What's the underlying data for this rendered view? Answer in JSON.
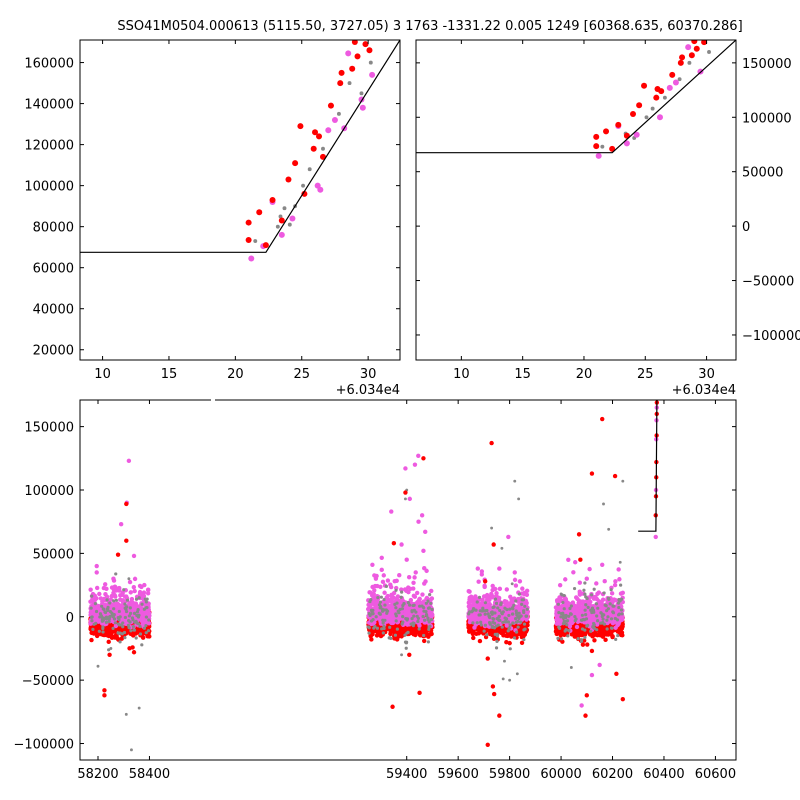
{
  "title": "SSO41M0504.000613 (5115.50, 3727.05) 3 1763 -1331.22 0.005 1249 [60368.635, 60370.286]",
  "colors": {
    "red": "#ff0000",
    "magenta": "#ee5ae0",
    "gray": "#888888",
    "line": "#000000"
  },
  "chart_data": [
    {
      "type": "scatter",
      "panel": "top-left",
      "x_offset_label": "+6.034e4",
      "xlim": [
        8.3,
        32.4
      ],
      "ylim": [
        15000,
        171000
      ],
      "xticks": [
        10,
        15,
        20,
        25,
        30
      ],
      "xtick_labels": [
        "10",
        "15",
        "20",
        "25",
        "30"
      ],
      "yticks": [
        20000,
        40000,
        60000,
        80000,
        100000,
        120000,
        140000,
        160000
      ],
      "ytick_labels": [
        "20000",
        "40000",
        "60000",
        "80000",
        "100000",
        "120000",
        "140000",
        "160000"
      ],
      "yaxis_side": "left",
      "model_line": [
        [
          8.3,
          67500
        ],
        [
          22.3,
          67500
        ],
        [
          32.4,
          171000
        ]
      ],
      "series": [
        {
          "color_key": "red",
          "points": [
            [
              21.0,
              73500
            ],
            [
              21.0,
              82000
            ],
            [
              21.8,
              87000
            ],
            [
              22.3,
              71000
            ],
            [
              22.8,
              93000
            ],
            [
              23.5,
              83000
            ],
            [
              24.0,
              103000
            ],
            [
              24.5,
              111000
            ],
            [
              24.9,
              129000
            ],
            [
              25.2,
              96000
            ],
            [
              25.9,
              118000
            ],
            [
              26.0,
              126000
            ],
            [
              26.3,
              124000
            ],
            [
              26.6,
              114000
            ],
            [
              27.2,
              139000
            ],
            [
              27.9,
              150000
            ],
            [
              28.0,
              155000
            ],
            [
              28.8,
              157000
            ],
            [
              29.2,
              163000
            ],
            [
              29.0,
              170000
            ],
            [
              29.8,
              169000
            ],
            [
              30.1,
              166000
            ]
          ]
        },
        {
          "color_key": "magenta",
          "points": [
            [
              21.2,
              64500
            ],
            [
              22.1,
              70500
            ],
            [
              22.8,
              92000
            ],
            [
              23.5,
              76000
            ],
            [
              24.3,
              84000
            ],
            [
              26.2,
              100000
            ],
            [
              26.4,
              98000
            ],
            [
              27.0,
              127000
            ],
            [
              27.5,
              132000
            ],
            [
              28.2,
              128000
            ],
            [
              28.5,
              164500
            ],
            [
              29.5,
              142000
            ],
            [
              29.6,
              138000
            ],
            [
              30.3,
              154000
            ]
          ]
        },
        {
          "color_key": "gray",
          "points": [
            [
              21.5,
              73000
            ],
            [
              23.2,
              80000
            ],
            [
              23.4,
              85000
            ],
            [
              23.7,
              89000
            ],
            [
              24.1,
              81000
            ],
            [
              24.5,
              90000
            ],
            [
              25.1,
              100000
            ],
            [
              25.6,
              108000
            ],
            [
              26.6,
              118000
            ],
            [
              27.8,
              135000
            ],
            [
              28.6,
              150000
            ],
            [
              29.5,
              145000
            ],
            [
              30.2,
              160000
            ]
          ]
        }
      ]
    },
    {
      "type": "scatter",
      "panel": "top-right",
      "x_offset_label": "+6.034e4",
      "xlim": [
        6.3,
        32.4
      ],
      "ylim": [
        -123000,
        171000
      ],
      "xticks": [
        10,
        15,
        20,
        25,
        30
      ],
      "xtick_labels": [
        "10",
        "15",
        "20",
        "25",
        "30"
      ],
      "yticks": [
        -100000,
        -50000,
        0,
        50000,
        100000,
        150000
      ],
      "ytick_labels": [
        "−100000",
        "−50000",
        "0",
        "50000",
        "100000",
        "150000"
      ],
      "yaxis_side": "right",
      "model_line": [
        [
          6.3,
          67500
        ],
        [
          22.3,
          67500
        ],
        [
          32.4,
          171000
        ]
      ],
      "series": [
        {
          "color_key": "red",
          "points": [
            [
              21.0,
              73500
            ],
            [
              21.0,
              82000
            ],
            [
              21.8,
              87000
            ],
            [
              22.3,
              71000
            ],
            [
              22.8,
              93000
            ],
            [
              23.5,
              83000
            ],
            [
              24.0,
              103000
            ],
            [
              24.5,
              111000
            ],
            [
              24.9,
              129000
            ],
            [
              25.9,
              118000
            ],
            [
              26.0,
              126000
            ],
            [
              26.3,
              124000
            ],
            [
              27.2,
              139000
            ],
            [
              27.9,
              150000
            ],
            [
              28.0,
              155000
            ],
            [
              28.8,
              157000
            ],
            [
              29.2,
              163000
            ],
            [
              29.0,
              170000
            ],
            [
              29.8,
              169000
            ]
          ]
        },
        {
          "color_key": "magenta",
          "points": [
            [
              21.2,
              64500
            ],
            [
              22.8,
              92000
            ],
            [
              23.5,
              76000
            ],
            [
              24.3,
              84000
            ],
            [
              26.2,
              100000
            ],
            [
              27.0,
              127000
            ],
            [
              27.5,
              132000
            ],
            [
              28.5,
              164500
            ],
            [
              29.5,
              142000
            ]
          ]
        },
        {
          "color_key": "gray",
          "points": [
            [
              21.5,
              73000
            ],
            [
              23.4,
              85000
            ],
            [
              24.1,
              81000
            ],
            [
              25.1,
              100000
            ],
            [
              25.6,
              108000
            ],
            [
              26.6,
              118000
            ],
            [
              27.8,
              135000
            ],
            [
              28.6,
              150000
            ],
            [
              30.2,
              160000
            ]
          ]
        }
      ]
    },
    {
      "type": "scatter",
      "panel": "bottom",
      "xlim": [
        58130,
        60680
      ],
      "ylim": [
        -113000,
        171000
      ],
      "xticks": [
        58200,
        58400,
        59400,
        59600,
        59800,
        60000,
        60200,
        60400,
        60600
      ],
      "xtick_labels": [
        "58200",
        "58400",
        "59400",
        "59600",
        "59800",
        "60000",
        "60200",
        "60400",
        "60600"
      ],
      "yticks": [
        -100000,
        -50000,
        0,
        50000,
        100000,
        150000
      ],
      "ytick_labels": [
        "−100000",
        "−50000",
        "0",
        "50000",
        "100000",
        "150000"
      ],
      "yaxis_side": "left",
      "broken_x_axis": {
        "gap_start": 58420,
        "gap_end": 59250
      },
      "season_clusters": [
        {
          "x_range": [
            58170,
            58400
          ],
          "spread": 12000
        },
        {
          "x_range": [
            59250,
            59500
          ],
          "spread": 14000
        },
        {
          "x_range": [
            59640,
            59870
          ],
          "spread": 12000
        },
        {
          "x_range": [
            59980,
            60240
          ],
          "spread": 12000
        }
      ],
      "model_line": [
        [
          60300,
          67500
        ],
        [
          60368.6,
          67500
        ],
        [
          60372.4,
          171000
        ]
      ],
      "series": [
        {
          "color_key": "magenta",
          "points": [
            [
              58195,
              40000
            ],
            [
              58195,
              35000
            ],
            [
              58320,
              123000
            ],
            [
              58312,
              90000
            ],
            [
              58290,
              73000
            ],
            [
              58340,
              48000
            ],
            [
              58260,
              30000
            ],
            [
              58380,
              25000
            ],
            [
              58205,
              18000
            ],
            [
              59340,
              83000
            ],
            [
              59395,
              117000
            ],
            [
              59445,
              127000
            ],
            [
              59432,
              120000
            ],
            [
              59412,
              93000
            ],
            [
              59460,
              80000
            ],
            [
              59446,
              75000
            ],
            [
              59380,
              57000
            ],
            [
              59472,
              67000
            ],
            [
              59303,
              37000
            ],
            [
              59465,
              52000
            ],
            [
              59400,
              45000
            ],
            [
              59435,
              35000
            ],
            [
              59760,
              38000
            ],
            [
              59795,
              63000
            ],
            [
              59820,
              35000
            ],
            [
              59715,
              15000
            ],
            [
              59840,
              28000
            ],
            [
              60055,
              43000
            ],
            [
              60160,
              41000
            ],
            [
              60210,
              25000
            ],
            [
              60100,
              30000
            ],
            [
              60135,
              15000
            ],
            [
              60080,
              -70000
            ],
            [
              60120,
              -46000
            ],
            [
              60150,
              -38000
            ],
            [
              60368,
              63000
            ],
            [
              60369,
              100000
            ],
            [
              60370,
              140000
            ],
            [
              60371,
              155000
            ],
            [
              60372,
              165000
            ]
          ]
        },
        {
          "color_key": "red",
          "points": [
            [
              58310,
              89000
            ],
            [
              58310,
              60000
            ],
            [
              58278,
              49000
            ],
            [
              58225,
              -58000
            ],
            [
              58225,
              -62000
            ],
            [
              58340,
              -28000
            ],
            [
              58245,
              -30000
            ],
            [
              59345,
              -71000
            ],
            [
              59465,
              125000
            ],
            [
              59395,
              98000
            ],
            [
              59350,
              58000
            ],
            [
              59450,
              -60000
            ],
            [
              59410,
              -30000
            ],
            [
              59730,
              137000
            ],
            [
              59715,
              -101000
            ],
            [
              59740,
              -61000
            ],
            [
              59760,
              -78000
            ],
            [
              59735,
              -55000
            ],
            [
              59715,
              -33000
            ],
            [
              59738,
              57000
            ],
            [
              59705,
              28000
            ],
            [
              60160,
              156000
            ],
            [
              60120,
              113000
            ],
            [
              60210,
              111000
            ],
            [
              60070,
              65000
            ],
            [
              60075,
              45000
            ],
            [
              60100,
              -62000
            ],
            [
              60095,
              -78000
            ],
            [
              60240,
              -65000
            ],
            [
              60215,
              -45000
            ],
            [
              60085,
              -22000
            ],
            [
              60120,
              -27000
            ],
            [
              60200,
              -16000
            ],
            [
              60368,
              80000
            ],
            [
              60369,
              95000
            ],
            [
              60370,
              110000
            ],
            [
              60370.5,
              122000
            ],
            [
              60371.5,
              143000
            ],
            [
              60372,
              160000
            ],
            [
              60372.3,
              169000
            ]
          ]
        },
        {
          "color_key": "gray",
          "points": [
            [
              58360,
              -72000
            ],
            [
              58330,
              -105000
            ],
            [
              58310,
              -77000
            ],
            [
              58200,
              -39000
            ],
            [
              58250,
              -25000
            ],
            [
              58320,
              30000
            ],
            [
              59400,
              100000
            ],
            [
              59395,
              93000
            ],
            [
              59400,
              -13000
            ],
            [
              59380,
              -30000
            ],
            [
              59820,
              107000
            ],
            [
              59730,
              70000
            ],
            [
              59770,
              54000
            ],
            [
              59835,
              93000
            ],
            [
              59830,
              -45000
            ],
            [
              59800,
              -50000
            ],
            [
              59775,
              -49000
            ],
            [
              59780,
              -35000
            ],
            [
              59810,
              26000
            ],
            [
              60240,
              107000
            ],
            [
              60165,
              89000
            ],
            [
              60185,
              69000
            ],
            [
              60040,
              -40000
            ],
            [
              60000,
              18000
            ],
            [
              60230,
              43000
            ],
            [
              60225,
              13000
            ]
          ]
        }
      ]
    }
  ]
}
